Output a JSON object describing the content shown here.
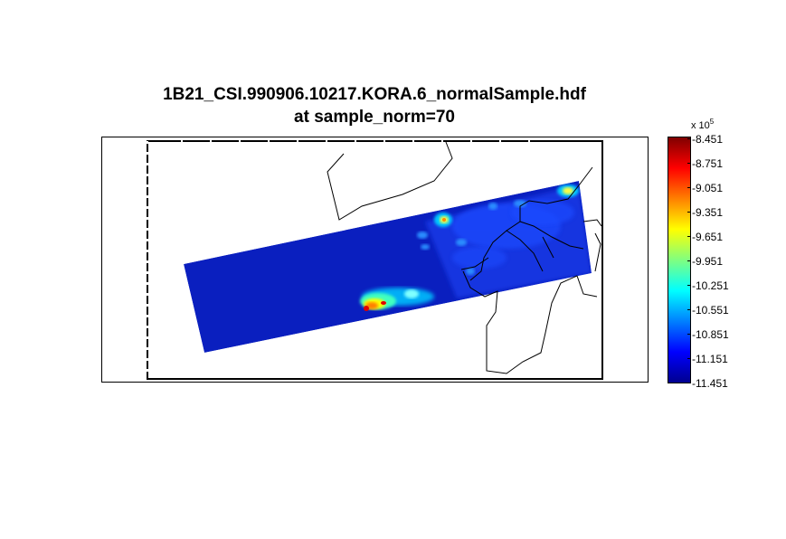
{
  "title": {
    "line1": "1B21_CSI.990906.10217.KORA.6_normalSample.hdf",
    "line2": "at sample_norm=70"
  },
  "colorbar": {
    "multiplier_base": "x 10",
    "multiplier_exponent": "5",
    "ticks": [
      "-8.451",
      "-8.751",
      "-9.051",
      "-9.351",
      "-9.651",
      "-9.951",
      "-10.251",
      "-10.551",
      "-10.851",
      "-11.151",
      "-11.451"
    ],
    "colors": [
      "#800000",
      "#ff0000",
      "#ff8000",
      "#ffff00",
      "#80ff80",
      "#00ffff",
      "#0080ff",
      "#0000ff",
      "#00008f"
    ]
  },
  "swath": {
    "background_color": "#0a1fbf"
  }
}
